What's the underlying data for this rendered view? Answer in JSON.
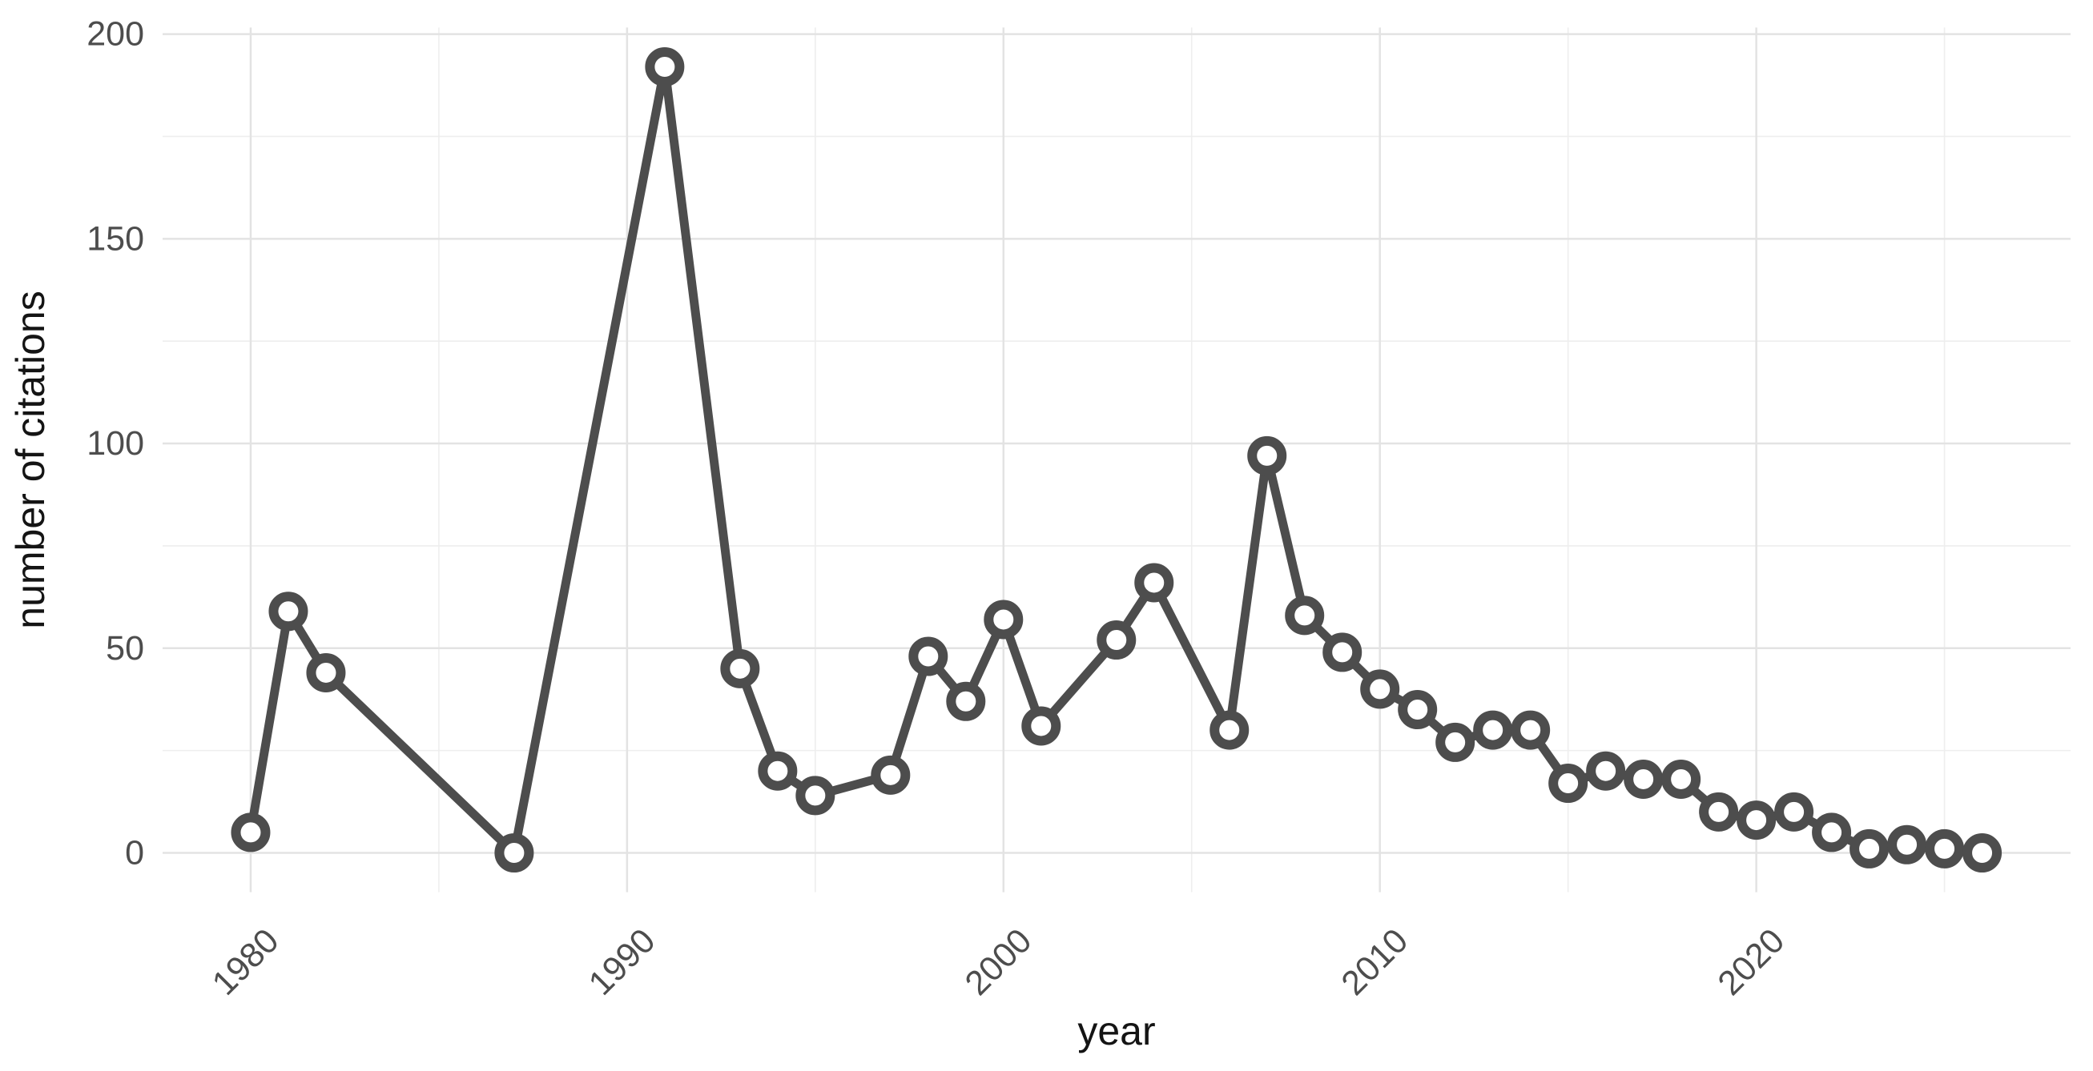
{
  "chart_data": {
    "type": "line",
    "title": "",
    "xlabel": "year",
    "ylabel": "number of citations",
    "series": [
      {
        "name": "citations",
        "x": [
          1980,
          1981,
          1982,
          1987,
          1991,
          1993,
          1994,
          1995,
          1997,
          1998,
          1999,
          2000,
          2001,
          2003,
          2004,
          2006,
          2007,
          2008,
          2009,
          2010,
          2011,
          2012,
          2013,
          2014,
          2015,
          2016,
          2017,
          2018,
          2019,
          2020,
          2021,
          2022,
          2023,
          2024,
          2025,
          2026
        ],
        "values": [
          5,
          59,
          44,
          0,
          192,
          45,
          20,
          14,
          19,
          48,
          37,
          57,
          31,
          52,
          66,
          30,
          97,
          58,
          49,
          40,
          35,
          27,
          30,
          30,
          17,
          20,
          18,
          18,
          10,
          8,
          10,
          5,
          1,
          2,
          1,
          0
        ]
      }
    ],
    "x_ticks_major": [
      1980,
      1990,
      2000,
      2010,
      2020
    ],
    "x_ticks_minor": [
      1985,
      1995,
      2005,
      2015,
      2025
    ],
    "y_ticks_major": [
      0,
      50,
      100,
      150,
      200
    ],
    "y_ticks_minor": [
      25,
      75,
      125,
      175
    ],
    "xlim": [
      1977.66,
      2028.35
    ],
    "ylim": [
      -9.6,
      201.6
    ],
    "grid": "major-and-minor",
    "legend_position": "none",
    "marker": "open-circle",
    "colors": {
      "line": "#4d4d4d",
      "marker_stroke": "#4d4d4d",
      "marker_fill": "#ffffff",
      "tick_text": "#4d4d4d",
      "title_text": "#141414",
      "grid_major": "#e3e3e3",
      "grid_minor": "#eeeeee",
      "background": "#ffffff"
    }
  }
}
